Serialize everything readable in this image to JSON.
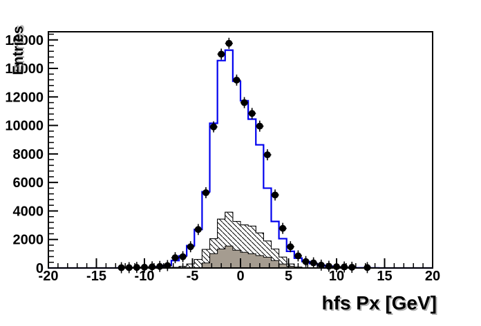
{
  "chart_data": {
    "type": "histogram",
    "title": "",
    "xlabel": "hfs Px [GeV]",
    "ylabel": "Entries",
    "xlim": [
      -20,
      20
    ],
    "ylim": [
      0,
      16570
    ],
    "grid": false,
    "legend": false,
    "x_major_tick_values": [
      -20,
      -15,
      -10,
      -5,
      0,
      5,
      10,
      15,
      20
    ],
    "x_tick_labels": [
      "-20",
      "-15",
      "-10",
      "-5",
      "0",
      "5",
      "10",
      "15",
      "20"
    ],
    "x_minor_tick_step": 1,
    "y_major_tick_values": [
      0,
      2000,
      4000,
      6000,
      8000,
      10000,
      12000,
      14000,
      16000
    ],
    "y_tick_labels": [
      "0",
      "2000",
      "4000",
      "6000",
      "8000",
      "10000",
      "12000",
      "14000",
      "16000"
    ],
    "y_minor_tick_step": 400,
    "bin_width": 0.8,
    "bin_centers": [
      -12.4,
      -11.6,
      -10.8,
      -10.0,
      -9.2,
      -8.4,
      -7.6,
      -6.8,
      -6.0,
      -5.2,
      -4.4,
      -3.6,
      -2.8,
      -2.0,
      -1.2,
      -0.4,
      0.4,
      1.2,
      2.0,
      2.8,
      3.6,
      4.4,
      5.2,
      6.0,
      6.8,
      7.6,
      8.4,
      9.2,
      10.0,
      10.8,
      11.6,
      12.4,
      13.2,
      14.0
    ],
    "series": [
      {
        "name": "background-hatched",
        "type": "filled-histogram",
        "fill": "hatched",
        "hatch_direction": "backslash",
        "outline_color": "#000000",
        "values": [
          0,
          0,
          0,
          0,
          0,
          5,
          15,
          40,
          110,
          280,
          600,
          1300,
          2055,
          3425,
          3910,
          3265,
          3025,
          2940,
          2460,
          1895,
          1330,
          765,
          280,
          60,
          20,
          5,
          0,
          0,
          0,
          0,
          0,
          0,
          0,
          0
        ]
      },
      {
        "name": "background-gray",
        "type": "filled-histogram",
        "fill": "#a59c90",
        "outline_color": "#000000",
        "values": [
          0,
          0,
          0,
          0,
          0,
          0,
          0,
          0,
          0,
          0,
          0,
          350,
          1005,
          1330,
          1540,
          1250,
          1100,
          1000,
          870,
          760,
          520,
          280,
          120,
          30,
          10,
          0,
          0,
          0,
          0,
          0,
          0,
          0,
          0,
          0
        ]
      },
      {
        "name": "mc-total",
        "type": "step-histogram",
        "color": "#0000ee",
        "line_width": 2.2,
        "values": [
          5,
          8,
          12,
          20,
          40,
          80,
          180,
          520,
          850,
          1570,
          2700,
          5350,
          10150,
          14550,
          15280,
          13100,
          11730,
          10440,
          8640,
          5600,
          3265,
          2055,
          1170,
          690,
          450,
          300,
          190,
          120,
          70,
          40,
          25,
          12,
          8,
          5
        ]
      },
      {
        "name": "data-points",
        "type": "scatter",
        "marker": "filled-circle",
        "color": "#000000",
        "values": [
          20,
          25,
          40,
          55,
          80,
          110,
          170,
          720,
          790,
          1490,
          2700,
          5280,
          9900,
          15000,
          15760,
          13180,
          11600,
          10840,
          9950,
          7940,
          5120,
          2780,
          1490,
          850,
          450,
          360,
          200,
          120,
          90,
          70,
          50,
          null,
          30,
          null
        ]
      }
    ]
  },
  "colors": {
    "frame": "#000000",
    "mc_line": "#0000ee",
    "gray_fill": "#a59c90",
    "background": "#ffffff",
    "text": "#000000"
  }
}
